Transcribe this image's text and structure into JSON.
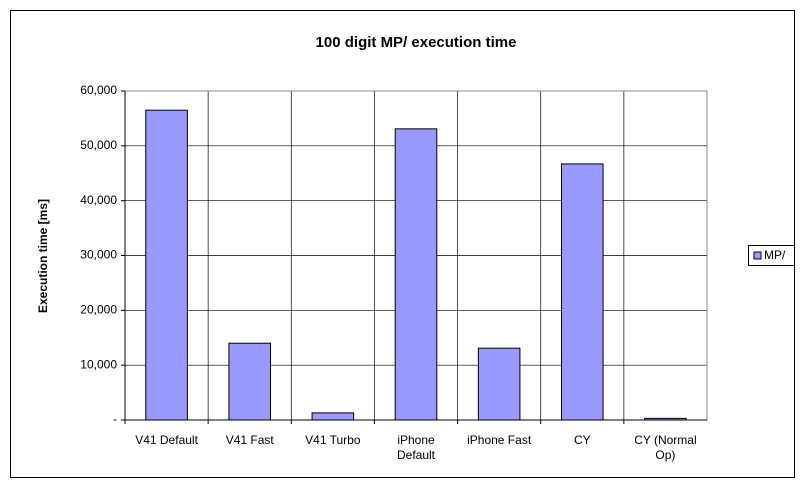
{
  "chart_data": {
    "type": "bar",
    "title": "100 digit MP/ execution time",
    "y_label": "Execution time [ms]",
    "categories": [
      "V41 Default",
      "V41 Fast",
      "V41 Turbo",
      "iPhone Default",
      "iPhone Fast",
      "CY",
      "CY (Normal Op)"
    ],
    "series": [
      {
        "name": "MP/",
        "color": "#9999ff",
        "values": [
          56500,
          14000,
          1300,
          53100,
          13100,
          46700,
          300
        ]
      }
    ],
    "ylim": [
      0,
      60000
    ],
    "yticks": [
      {
        "value": 0,
        "label": "-"
      },
      {
        "value": 10000,
        "label": "10,000"
      },
      {
        "value": 20000,
        "label": "20,000"
      },
      {
        "value": 30000,
        "label": "30,000"
      },
      {
        "value": 40000,
        "label": "40,000"
      },
      {
        "value": 50000,
        "label": "50,000"
      },
      {
        "value": 60000,
        "label": "60,000"
      }
    ],
    "grid": true,
    "legend": "right"
  }
}
